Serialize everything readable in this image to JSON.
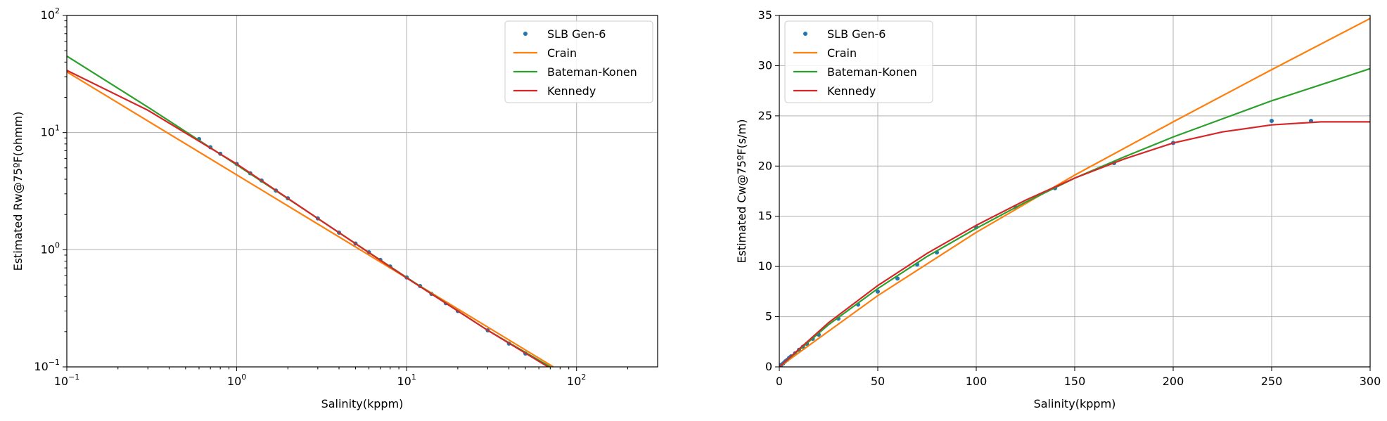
{
  "chart_data": [
    {
      "type": "line",
      "xscale": "log",
      "yscale": "log",
      "xlim": [
        0.1,
        300
      ],
      "ylim": [
        0.1,
        100
      ],
      "xlabel": "Salinity(kppm)",
      "ylabel": "Estimated Rw@75ºF(ohmm)",
      "x_ticks": [
        {
          "value": 0.1,
          "base": "10",
          "exp": "−1"
        },
        {
          "value": 1,
          "base": "10",
          "exp": "0"
        },
        {
          "value": 10,
          "base": "10",
          "exp": "1"
        },
        {
          "value": 100,
          "base": "10",
          "exp": "2"
        }
      ],
      "y_ticks": [
        {
          "value": 0.1,
          "base": "10",
          "exp": "−1"
        },
        {
          "value": 1,
          "base": "10",
          "exp": "0"
        },
        {
          "value": 10,
          "base": "10",
          "exp": "1"
        },
        {
          "value": 100,
          "base": "10",
          "exp": "2"
        }
      ],
      "grid": true,
      "legend_position": "top-right",
      "series": [
        {
          "name": "SLB Gen-6",
          "style": "points",
          "color": "#1f77b4",
          "x": [
            0.6,
            0.7,
            0.8,
            1,
            1.2,
            1.4,
            1.7,
            2,
            3,
            4,
            5,
            6,
            7,
            8,
            10,
            12,
            14,
            17,
            20,
            30,
            40,
            50
          ],
          "y": [
            8.8,
            7.5,
            6.6,
            5.4,
            4.5,
            3.9,
            3.2,
            2.75,
            1.85,
            1.4,
            1.13,
            0.95,
            0.82,
            0.72,
            0.58,
            0.49,
            0.42,
            0.35,
            0.3,
            0.205,
            0.158,
            0.13
          ]
        },
        {
          "name": "Crain",
          "style": "line",
          "color": "#ff7f0e",
          "x": [
            0.1,
            73
          ],
          "y": [
            33,
            0.1
          ]
        },
        {
          "name": "Bateman-Konen",
          "style": "line",
          "color": "#2ca02c",
          "x": [
            0.1,
            0.3,
            1,
            3,
            10,
            30,
            70
          ],
          "y": [
            45,
            16.5,
            5.3,
            1.85,
            0.58,
            0.205,
            0.1
          ]
        },
        {
          "name": "Kennedy",
          "style": "line",
          "color": "#d62728",
          "x": [
            0.1,
            0.3,
            1,
            3,
            10,
            30,
            68
          ],
          "y": [
            34,
            15.5,
            5.4,
            1.85,
            0.575,
            0.205,
            0.1
          ]
        }
      ]
    },
    {
      "type": "line",
      "xscale": "linear",
      "yscale": "linear",
      "xlim": [
        0,
        300
      ],
      "ylim": [
        0,
        35
      ],
      "xlabel": "Salinity(kppm)",
      "ylabel": "Estimated Cw@75ºF(s/m)",
      "x_ticks": [
        {
          "value": 0,
          "label": "0"
        },
        {
          "value": 50,
          "label": "50"
        },
        {
          "value": 100,
          "label": "100"
        },
        {
          "value": 150,
          "label": "150"
        },
        {
          "value": 200,
          "label": "200"
        },
        {
          "value": 250,
          "label": "250"
        },
        {
          "value": 300,
          "label": "300"
        }
      ],
      "y_ticks": [
        {
          "value": 0,
          "label": "0"
        },
        {
          "value": 5,
          "label": "5"
        },
        {
          "value": 10,
          "label": "10"
        },
        {
          "value": 15,
          "label": "15"
        },
        {
          "value": 20,
          "label": "20"
        },
        {
          "value": 25,
          "label": "25"
        },
        {
          "value": 30,
          "label": "30"
        },
        {
          "value": 35,
          "label": "35"
        }
      ],
      "grid": true,
      "legend_position": "top-left",
      "series": [
        {
          "name": "SLB Gen-6",
          "style": "points",
          "color": "#1f77b4",
          "x": [
            0.5,
            1,
            2,
            3,
            4,
            5,
            6,
            8,
            10,
            12,
            14,
            17,
            20,
            30,
            40,
            50,
            60,
            70,
            80,
            100,
            120,
            140,
            170,
            200,
            250,
            270
          ],
          "y": [
            0.1,
            0.2,
            0.35,
            0.55,
            0.7,
            0.9,
            1.05,
            1.35,
            1.7,
            2.0,
            2.3,
            2.8,
            3.2,
            4.8,
            6.2,
            7.5,
            8.8,
            10.2,
            11.4,
            13.9,
            15.9,
            17.8,
            20.3,
            22.3,
            24.5,
            24.5
          ]
        },
        {
          "name": "Crain",
          "style": "line",
          "color": "#ff7f0e",
          "x": [
            0,
            50,
            100,
            150,
            200,
            250,
            300
          ],
          "y": [
            0,
            7.1,
            13.4,
            19.1,
            24.4,
            29.6,
            34.7
          ]
        },
        {
          "name": "Bateman-Konen",
          "style": "line",
          "color": "#2ca02c",
          "x": [
            0,
            25,
            50,
            75,
            100,
            125,
            150,
            175,
            200,
            225,
            250,
            275,
            300
          ],
          "y": [
            0,
            4.2,
            7.8,
            11,
            13.8,
            16.4,
            18.8,
            20.9,
            22.9,
            24.7,
            26.5,
            28.1,
            29.7
          ]
        },
        {
          "name": "Kennedy",
          "style": "line",
          "color": "#d62728",
          "x": [
            0,
            25,
            50,
            75,
            100,
            125,
            150,
            175,
            200,
            225,
            250,
            275,
            300
          ],
          "y": [
            0,
            4.4,
            8.1,
            11.3,
            14.1,
            16.6,
            18.8,
            20.7,
            22.3,
            23.4,
            24.1,
            24.4,
            24.4
          ]
        }
      ]
    }
  ]
}
